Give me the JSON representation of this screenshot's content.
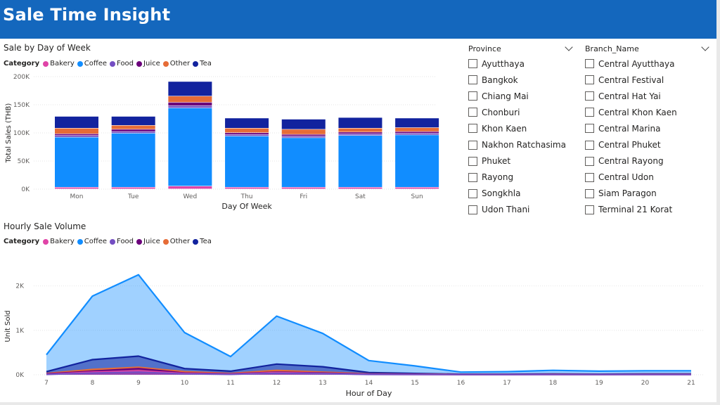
{
  "header": {
    "title": "Sale Time Insight"
  },
  "colors": {
    "header_bg": "#1467bd",
    "Bakery": "#e044a7",
    "Coffee": "#118dff",
    "Food": "#744ec2",
    "Juice": "#6b007b",
    "Other": "#e66c37",
    "Tea": "#12239e"
  },
  "slicers": {
    "province": {
      "title": "Province",
      "items": [
        "Ayutthaya",
        "Bangkok",
        "Chiang Mai",
        "Chonburi",
        "Khon Kaen",
        "Nakhon Ratchasima",
        "Phuket",
        "Rayong",
        "Songkhla",
        "Udon Thani"
      ]
    },
    "branch": {
      "title": "Branch_Name",
      "items": [
        "Central Ayutthaya",
        "Central Festival",
        "Central Hat Yai",
        "Central Khon Kaen",
        "Central Marina",
        "Central Phuket",
        "Central Rayong",
        "Central Udon",
        "Siam Paragon",
        "Terminal 21 Korat"
      ]
    }
  },
  "chart_data": [
    {
      "type": "bar",
      "stacked": true,
      "title": "Sale by Day of Week",
      "legend_title": "Category",
      "legend_position": "top-left",
      "xlabel": "Day Of Week",
      "ylabel": "Total Sales (THB)",
      "ylim": [
        0,
        200000
      ],
      "yticks": [
        0,
        50000,
        100000,
        150000,
        200000
      ],
      "ytick_labels": [
        "0K",
        "50K",
        "100K",
        "150K",
        "200K"
      ],
      "grid": true,
      "categories": [
        "Mon",
        "Tue",
        "Wed",
        "Thu",
        "Fri",
        "Sat",
        "Sun"
      ],
      "series": [
        {
          "name": "Bakery",
          "values": [
            3000,
            3000,
            5000,
            3000,
            3000,
            3000,
            3000
          ]
        },
        {
          "name": "Coffee",
          "values": [
            89000,
            96000,
            139000,
            91000,
            88000,
            92000,
            93000
          ]
        },
        {
          "name": "Food",
          "values": [
            3000,
            3000,
            4000,
            3000,
            3000,
            3000,
            3000
          ]
        },
        {
          "name": "Juice",
          "values": [
            3000,
            4000,
            6000,
            3000,
            3000,
            3000,
            3000
          ]
        },
        {
          "name": "Other",
          "values": [
            10000,
            7000,
            11000,
            8000,
            9000,
            7000,
            7000
          ]
        },
        {
          "name": "Tea",
          "values": [
            21000,
            16000,
            26000,
            18000,
            18000,
            19000,
            17000
          ]
        }
      ]
    },
    {
      "type": "area",
      "title": "Hourly Sale Volume",
      "legend_title": "Category",
      "legend_position": "top-left",
      "xlabel": "Hour of Day",
      "ylabel": "Unit Sold",
      "ylim": [
        0,
        2500
      ],
      "yticks": [
        0,
        1000,
        2000
      ],
      "ytick_labels": [
        "0K",
        "1K",
        "2K"
      ],
      "grid": true,
      "x": [
        7,
        8,
        9,
        10,
        11,
        12,
        13,
        14,
        15,
        16,
        17,
        18,
        19,
        20,
        21
      ],
      "series": [
        {
          "name": "Coffee",
          "values": [
            450,
            1770,
            2250,
            950,
            410,
            1320,
            930,
            320,
            200,
            60,
            70,
            100,
            80,
            90,
            90
          ]
        },
        {
          "name": "Tea",
          "values": [
            70,
            340,
            420,
            140,
            80,
            240,
            180,
            50,
            30,
            15,
            15,
            20,
            15,
            20,
            20
          ]
        },
        {
          "name": "Other",
          "values": [
            30,
            120,
            170,
            70,
            30,
            100,
            60,
            20,
            12,
            8,
            8,
            10,
            8,
            10,
            10
          ]
        },
        {
          "name": "Juice",
          "values": [
            20,
            80,
            140,
            40,
            20,
            60,
            40,
            15,
            10,
            6,
            6,
            8,
            6,
            8,
            8
          ]
        },
        {
          "name": "Bakery",
          "values": [
            10,
            60,
            90,
            30,
            15,
            50,
            30,
            10,
            8,
            5,
            5,
            6,
            5,
            6,
            6
          ]
        },
        {
          "name": "Food",
          "values": [
            8,
            40,
            60,
            20,
            10,
            35,
            25,
            8,
            6,
            4,
            4,
            5,
            4,
            5,
            5
          ]
        }
      ]
    }
  ]
}
